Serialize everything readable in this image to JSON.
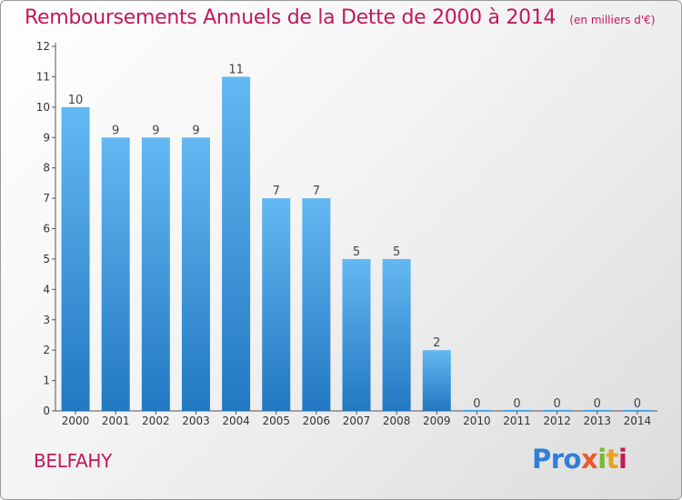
{
  "title": "Remboursements Annuels de la Dette de 2000 à 2014",
  "unit": "(en milliers d'€)",
  "commune": "BELFAHY",
  "logo": {
    "p1": "Pro",
    "p2": "x",
    "p3": "i",
    "p4": "t",
    "p5": "i"
  },
  "colors": {
    "title": "#c2185b",
    "bar": "#3d9ee6",
    "bar_light": "#64b8f2",
    "bar_dark": "#2278c2"
  },
  "chart_data": {
    "type": "bar",
    "categories": [
      "2000",
      "2001",
      "2002",
      "2003",
      "2004",
      "2005",
      "2006",
      "2007",
      "2008",
      "2009",
      "2010",
      "2011",
      "2012",
      "2013",
      "2014"
    ],
    "values": [
      10,
      9,
      9,
      9,
      11,
      7,
      7,
      5,
      5,
      2,
      0,
      0,
      0,
      0,
      0
    ],
    "ylim": [
      0,
      12
    ],
    "yticks": [
      0,
      1,
      2,
      3,
      4,
      5,
      6,
      7,
      8,
      9,
      10,
      11,
      12
    ],
    "grid": false,
    "legend": "none"
  }
}
